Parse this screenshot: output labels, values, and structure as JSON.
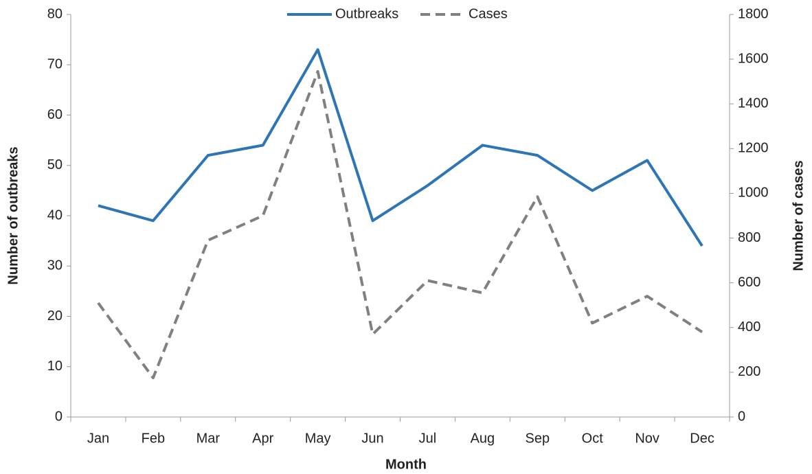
{
  "chart_data": {
    "type": "line",
    "x_label": "Month",
    "y_label": "Number of outbreaks",
    "y2_label": "Number of cases",
    "categories": [
      "Jan",
      "Feb",
      "Mar",
      "Apr",
      "May",
      "Jun",
      "Jul",
      "Aug",
      "Sep",
      "Oct",
      "Nov",
      "Dec"
    ],
    "series": [
      {
        "name": "Outbreaks",
        "color": "#2e75b6",
        "dash": false,
        "values": [
          42,
          39,
          52,
          54,
          73,
          39,
          46,
          54,
          52,
          45,
          51,
          34
        ]
      },
      {
        "name": "Cases",
        "color": "#808080",
        "dash": true,
        "axis": "y2",
        "values": [
          510,
          175,
          790,
          900,
          1545,
          370,
          610,
          555,
          985,
          420,
          540,
          380
        ]
      }
    ],
    "ylim": [
      0,
      80
    ],
    "yticks": [
      0,
      10,
      20,
      30,
      40,
      50,
      60,
      70,
      80
    ],
    "y2lim": [
      0,
      1800
    ],
    "y2ticks": [
      0,
      200,
      400,
      600,
      800,
      1000,
      1200,
      1400,
      1600,
      1800
    ],
    "grid": false,
    "legend": "top"
  }
}
